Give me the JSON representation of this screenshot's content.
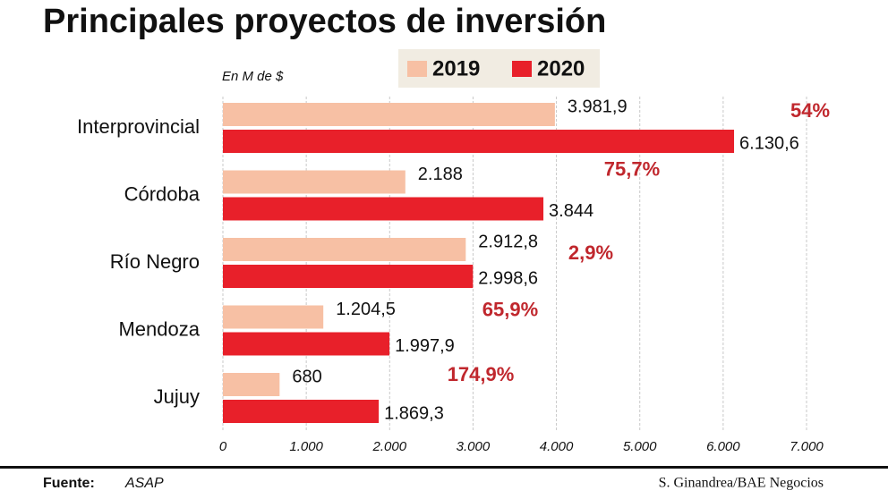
{
  "chart_data": {
    "type": "bar",
    "orientation": "horizontal",
    "title": "Principales proyectos de inversión",
    "subtitle": "En M de $",
    "categories": [
      "Interprovincial",
      "Córdoba",
      "Río Negro",
      "Mendoza",
      "Jujuy"
    ],
    "series": [
      {
        "name": "2019",
        "color": "#f7c0a4",
        "values": [
          3981.9,
          2188,
          2912.8,
          1204.5,
          680
        ],
        "value_labels": [
          "3.981,9",
          "2.188",
          "2.912,8",
          "1.204,5",
          "680"
        ]
      },
      {
        "name": "2020",
        "color": "#e8202a",
        "values": [
          6130.6,
          3844,
          2998.6,
          1997.9,
          1869.3
        ],
        "value_labels": [
          "6.130,6",
          "3.844",
          "2.998,6",
          "1.997,9",
          "1.869,3"
        ]
      }
    ],
    "annotations": [
      "54%",
      "75,7%",
      "2,9%",
      "65,9%",
      "174,9%"
    ],
    "annotation_color": "#c0272d",
    "xlim": [
      0,
      7000
    ],
    "xticks": [
      0,
      {
        "value": 1000,
        "label": "1.000"
      },
      {
        "value": 2000,
        "label": "2.000"
      },
      {
        "value": 3000,
        "label": "3.000"
      },
      {
        "value": 4000,
        "label": "4.000"
      },
      {
        "value": 5000,
        "label": "5.000"
      },
      {
        "value": 6000,
        "label": "6.000"
      },
      {
        "value": 7000,
        "label": "7.000"
      }
    ],
    "grid": true,
    "source_label": "Fuente:",
    "source": "ASAP",
    "credit": "S. Ginandrea/BAE Negocios"
  }
}
